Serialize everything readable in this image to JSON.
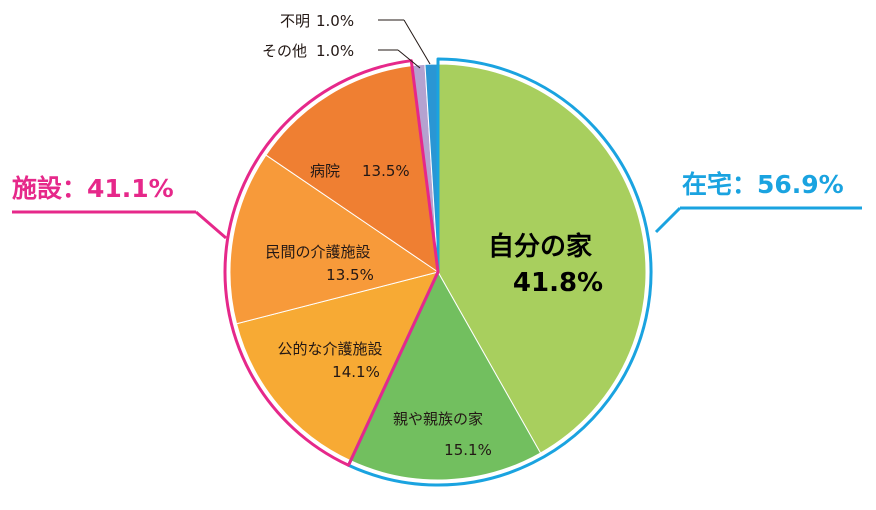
{
  "chart_data": {
    "type": "pie",
    "unit": "%",
    "slices": [
      {
        "name": "自分の家",
        "value": 41.8,
        "value_label": "41.8%",
        "color": "#a8cf5e",
        "group": "home"
      },
      {
        "name": "親や親族の家",
        "value": 15.1,
        "value_label": "15.1%",
        "color": "#72bf5f",
        "group": "home"
      },
      {
        "name": "公的な介護施設",
        "value": 14.1,
        "value_label": "14.1%",
        "color": "#f7aa34",
        "group": "facility"
      },
      {
        "name": "民間の介護施設",
        "value": 13.5,
        "value_label": "13.5%",
        "color": "#f79a3a",
        "group": "facility"
      },
      {
        "name": "病院",
        "value": 13.5,
        "value_label": "13.5%",
        "color": "#ef7f32",
        "group": "facility"
      },
      {
        "name": "その他",
        "value": 1.0,
        "value_label": "1.0%",
        "color": "#b4a2d0",
        "group": "none"
      },
      {
        "name": "不明",
        "value": 1.0,
        "value_label": "1.0%",
        "color": "#2a96d4",
        "group": "none"
      }
    ],
    "groups": [
      {
        "id": "home",
        "label": "在宅：56.9%",
        "color": "#1aa3e0"
      },
      {
        "id": "facility",
        "label": "施設：41.1%",
        "color": "#e6288a"
      }
    ]
  }
}
